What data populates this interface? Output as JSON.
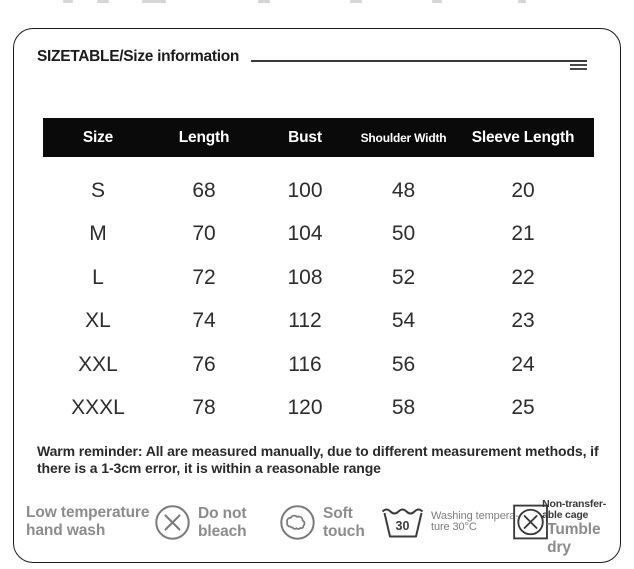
{
  "title": "SIZETABLE/Size information",
  "reminder": "Warm reminder: All are measured manually, due to different measurement methods, if there is a 1-3cm error, it is within a reasonable range",
  "chart_data": {
    "type": "table",
    "title": "SIZETABLE/Size information",
    "columns": [
      "Size",
      "Length",
      "Bust",
      "Shoulder Width",
      "Sleeve Length"
    ],
    "rows": [
      [
        "S",
        68,
        100,
        48,
        20
      ],
      [
        "M",
        70,
        104,
        50,
        21
      ],
      [
        "L",
        72,
        108,
        52,
        22
      ],
      [
        "XL",
        74,
        112,
        54,
        23
      ],
      [
        "XXL",
        76,
        116,
        56,
        24
      ],
      [
        "XXXL",
        78,
        120,
        58,
        25
      ]
    ]
  },
  "care_items": [
    {
      "label": "Low temperature hand wash"
    },
    {
      "icon": "do-not-bleach-icon",
      "label": "Do not bleach"
    },
    {
      "icon": "soft-touch-icon",
      "label": "Soft touch"
    },
    {
      "icon": "washing-temperature-icon",
      "temp_value": "30",
      "label_lines": [
        "Washing tempera-",
        "ture 30°C"
      ]
    },
    {
      "icon": "no-tumble-dry-icon",
      "note_lines": [
        "Non-transfer-",
        "able cage"
      ],
      "label": "Tumble dry"
    }
  ],
  "colors": {
    "header_bg": "#0a0a0a",
    "header_text": "#ffffff",
    "body_text": "#2d2d2d",
    "muted_text": "#8c8c8c",
    "icon_gray": "#7a7a7a",
    "icon_dark": "#3c3c3c",
    "card_border": "#1b1b1b"
  }
}
